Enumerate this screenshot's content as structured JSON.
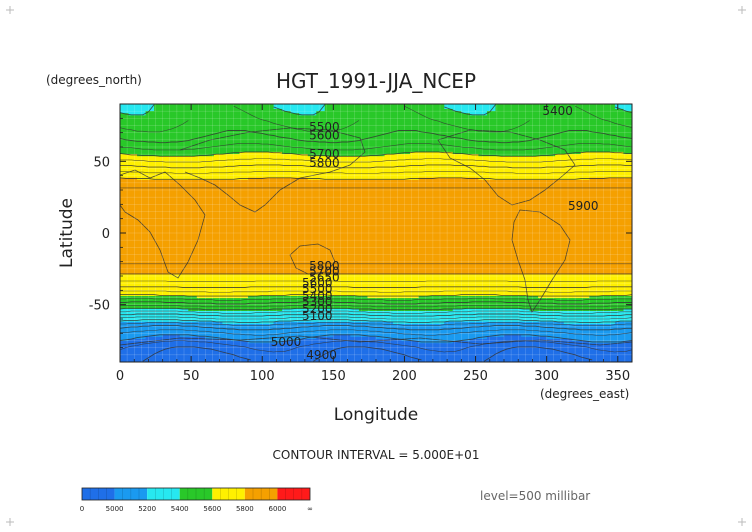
{
  "chart_data": {
    "type": "heatmap",
    "title": "HGT_1991-JJA_NCEP",
    "xlabel": "Longitude",
    "ylabel": "Latitude",
    "x_units": "(degrees_east)",
    "y_units": "(degrees_north)",
    "xlim": [
      0,
      360
    ],
    "ylim": [
      -90,
      90
    ],
    "x_ticks": [
      "0",
      "50",
      "100",
      "150",
      "200",
      "250",
      "300",
      "350"
    ],
    "y_ticks": [
      "50",
      "0",
      "-50"
    ],
    "grid": true,
    "contour_interval_text": "CONTOUR INTERVAL = 5.000E+01",
    "level_text": "level=500 millibar",
    "colorbar": {
      "labels": [
        "0",
        "5000",
        "5200",
        "5400",
        "5600",
        "5800",
        "6000",
        "∞"
      ],
      "bounds": [
        4800,
        5000,
        5200,
        5400,
        5600,
        5800,
        6000,
        6200
      ],
      "colors": [
        "#1f6fe8",
        "#1a9af0",
        "#27e8f0",
        "#29c829",
        "#fff000",
        "#f5a000",
        "#ff1a1a"
      ]
    },
    "profile": {
      "lat": [
        -90,
        -80,
        -70,
        -65,
        -60,
        -55,
        -50,
        -45,
        -40,
        -35,
        -30,
        -25,
        -20,
        0,
        20,
        25,
        30,
        35,
        40,
        45,
        50,
        55,
        60,
        65,
        70,
        80,
        90
      ],
      "hgt": [
        4880,
        4930,
        5040,
        5120,
        5240,
        5360,
        5480,
        5580,
        5670,
        5740,
        5790,
        5830,
        5860,
        5880,
        5890,
        5880,
        5860,
        5830,
        5780,
        5720,
        5660,
        5600,
        5550,
        5510,
        5480,
        5440,
        5420
      ]
    },
    "contour_labels": [
      {
        "text": "5400",
        "x": 297,
        "y": 85
      },
      {
        "text": "5500",
        "x": 133,
        "y": 74
      },
      {
        "text": "5600",
        "x": 133,
        "y": 68
      },
      {
        "text": "5700",
        "x": 133,
        "y": 55
      },
      {
        "text": "5800",
        "x": 133,
        "y": 49
      },
      {
        "text": "5900",
        "x": 315,
        "y": 19
      },
      {
        "text": "5800",
        "x": 133,
        "y": -23
      },
      {
        "text": "5700",
        "x": 133,
        "y": -27
      },
      {
        "text": "5650",
        "x": 133,
        "y": -31
      },
      {
        "text": "5600",
        "x": 128,
        "y": -35
      },
      {
        "text": "5500",
        "x": 128,
        "y": -39
      },
      {
        "text": "5400",
        "x": 128,
        "y": -44
      },
      {
        "text": "5300",
        "x": 128,
        "y": -48
      },
      {
        "text": "5200",
        "x": 128,
        "y": -53
      },
      {
        "text": "5100",
        "x": 128,
        "y": -58
      },
      {
        "text": "5000",
        "x": 106,
        "y": -76
      },
      {
        "text": "4900",
        "x": 131,
        "y": -85
      }
    ]
  }
}
